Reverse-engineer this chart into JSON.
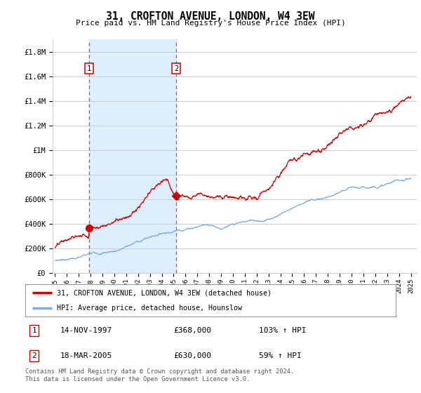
{
  "title": "31, CROFTON AVENUE, LONDON, W4 3EW",
  "subtitle": "Price paid vs. HM Land Registry's House Price Index (HPI)",
  "ylabel_ticks": [
    "£0",
    "£200K",
    "£400K",
    "£600K",
    "£800K",
    "£1M",
    "£1.2M",
    "£1.4M",
    "£1.6M",
    "£1.8M"
  ],
  "ylabel_values": [
    0,
    200000,
    400000,
    600000,
    800000,
    1000000,
    1200000,
    1400000,
    1600000,
    1800000
  ],
  "xlim": [
    1994.8,
    2025.5
  ],
  "ylim": [
    0,
    1900000
  ],
  "sale1_x": 1997.87,
  "sale1_y": 368000,
  "sale2_x": 2005.21,
  "sale2_y": 630000,
  "sale1_label": "1",
  "sale2_label": "2",
  "red_line_color": "#cc0000",
  "blue_line_color": "#7aabdc",
  "marker_color": "#cc0000",
  "vline_color": "#dd4444",
  "shade_color": "#ddeeff",
  "legend_line1": "31, CROFTON AVENUE, LONDON, W4 3EW (detached house)",
  "legend_line2": "HPI: Average price, detached house, Hounslow",
  "table_row1": [
    "1",
    "14-NOV-1997",
    "£368,000",
    "103% ↑ HPI"
  ],
  "table_row2": [
    "2",
    "18-MAR-2005",
    "£630,000",
    "59% ↑ HPI"
  ],
  "footer": "Contains HM Land Registry data © Crown copyright and database right 2024.\nThis data is licensed under the Open Government Licence v3.0.",
  "bg_color": "#ffffff",
  "grid_color": "#cccccc",
  "xtick_years": [
    1995,
    1996,
    1997,
    1998,
    1999,
    2000,
    2001,
    2002,
    2003,
    2004,
    2005,
    2006,
    2007,
    2008,
    2009,
    2010,
    2011,
    2012,
    2013,
    2014,
    2015,
    2016,
    2017,
    2018,
    2019,
    2020,
    2021,
    2022,
    2023,
    2024,
    2025
  ]
}
